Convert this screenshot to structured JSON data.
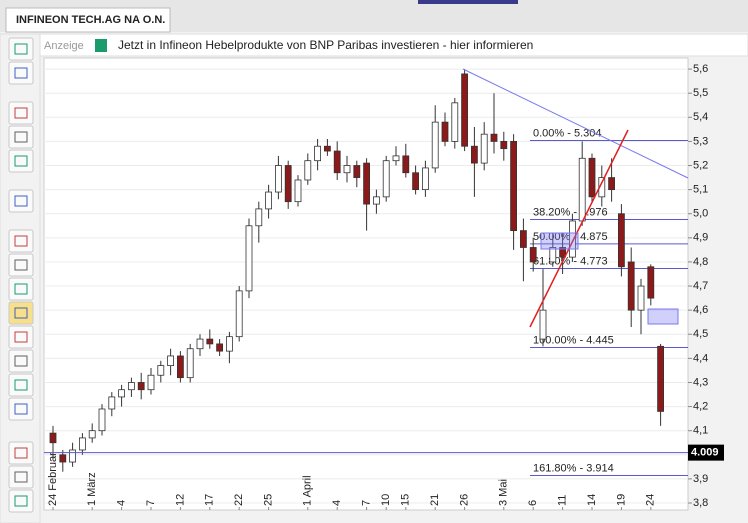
{
  "tab": "INFINEON TECH.AG NA O.N.",
  "ad": {
    "label": "Anzeige",
    "text": "Jetzt in Infineon Hebelprodukte von BNP Paribas investieren - hier informieren"
  },
  "chart_data": {
    "type": "candlestick",
    "categories": [
      "24 Februar",
      null,
      null,
      null,
      "1 März",
      null,
      null,
      "4",
      null,
      null,
      "7",
      null,
      null,
      "12",
      null,
      null,
      "17",
      null,
      null,
      "22",
      null,
      null,
      "25",
      null,
      null,
      null,
      "1 April",
      null,
      null,
      "4",
      null,
      null,
      "7",
      null,
      "10",
      null,
      "15",
      null,
      null,
      "21",
      null,
      null,
      "26",
      null,
      null,
      null,
      "3 Mai",
      null,
      null,
      "6",
      null,
      null,
      "11",
      null,
      null,
      "14",
      null,
      null,
      "19",
      null,
      null,
      "24",
      null
    ],
    "open": [
      4.09,
      4.0,
      3.97,
      4.02,
      4.07,
      4.1,
      4.19,
      4.24,
      4.27,
      4.3,
      4.27,
      4.33,
      4.37,
      4.41,
      4.32,
      4.44,
      4.48,
      4.46,
      4.43,
      4.49,
      4.68,
      4.95,
      5.02,
      5.09,
      5.2,
      5.05,
      5.14,
      5.22,
      5.28,
      5.26,
      5.17,
      5.2,
      5.21,
      5.04,
      5.07,
      5.22,
      5.24,
      5.17,
      5.1,
      5.19,
      5.38,
      5.3,
      5.58,
      5.28,
      5.21,
      5.33,
      5.3,
      5.3,
      4.93,
      4.86,
      4.48,
      4.8,
      4.86,
      4.82,
      4.97,
      5.23,
      5.07,
      5.15,
      5.0,
      4.8,
      4.6,
      4.78,
      4.45
    ],
    "high": [
      4.12,
      4.02,
      4.05,
      4.09,
      4.13,
      4.21,
      4.26,
      4.29,
      4.32,
      4.34,
      4.36,
      4.39,
      4.44,
      4.43,
      4.46,
      4.5,
      4.52,
      4.48,
      4.51,
      4.7,
      4.98,
      5.05,
      5.12,
      5.24,
      5.22,
      5.16,
      5.25,
      5.31,
      5.31,
      5.3,
      5.24,
      5.22,
      5.23,
      5.1,
      5.24,
      5.28,
      5.29,
      5.2,
      5.22,
      5.45,
      5.42,
      5.48,
      5.6,
      5.36,
      5.38,
      5.5,
      5.34,
      5.33,
      4.98,
      4.9,
      4.77,
      4.92,
      4.92,
      5.0,
      5.3,
      5.25,
      5.2,
      5.23,
      5.04,
      4.86,
      4.73,
      4.79,
      4.46
    ],
    "low": [
      3.98,
      3.93,
      3.95,
      4.0,
      4.05,
      4.08,
      4.16,
      4.2,
      4.24,
      4.23,
      4.25,
      4.3,
      4.33,
      4.3,
      4.3,
      4.41,
      4.44,
      4.41,
      4.38,
      4.47,
      4.65,
      4.88,
      4.98,
      5.06,
      5.02,
      5.03,
      5.12,
      5.18,
      5.24,
      5.14,
      5.13,
      5.11,
      4.93,
      5.0,
      5.05,
      5.2,
      5.15,
      5.08,
      5.07,
      5.17,
      5.28,
      5.27,
      5.26,
      5.07,
      5.18,
      5.25,
      5.22,
      4.85,
      4.72,
      4.76,
      4.45,
      4.78,
      4.75,
      4.8,
      4.95,
      5.05,
      5.03,
      5.05,
      4.74,
      4.53,
      4.5,
      4.62,
      4.12
    ],
    "close": [
      4.05,
      3.97,
      4.02,
      4.07,
      4.1,
      4.19,
      4.24,
      4.27,
      4.3,
      4.27,
      4.33,
      4.37,
      4.41,
      4.32,
      4.44,
      4.48,
      4.46,
      4.43,
      4.49,
      4.68,
      4.95,
      5.02,
      5.09,
      5.2,
      5.05,
      5.14,
      5.22,
      5.28,
      5.26,
      5.17,
      5.2,
      5.15,
      5.04,
      5.07,
      5.22,
      5.24,
      5.17,
      5.1,
      5.19,
      5.38,
      5.3,
      5.46,
      5.28,
      5.21,
      5.33,
      5.3,
      5.27,
      4.93,
      4.86,
      4.8,
      4.6,
      4.86,
      4.82,
      4.97,
      5.23,
      5.07,
      5.15,
      5.1,
      4.78,
      4.6,
      4.7,
      4.65,
      4.18
    ],
    "up_color": "#ffffff",
    "down_color": "#8b1a1a",
    "ylim": [
      3.771,
      5.646
    ],
    "yticks": [
      {
        "value": 3.8,
        "label": "3,8"
      },
      {
        "value": 3.9,
        "label": "3,9"
      },
      {
        "value": 4.0,
        "label": "4,0"
      },
      {
        "value": 4.1,
        "label": "4,1"
      },
      {
        "value": 4.2,
        "label": "4,2"
      },
      {
        "value": 4.3,
        "label": "4,3"
      },
      {
        "value": 4.4,
        "label": "4,4"
      },
      {
        "value": 4.5,
        "label": "4,5"
      },
      {
        "value": 4.6,
        "label": "4,6"
      },
      {
        "value": 4.7,
        "label": "4,7"
      },
      {
        "value": 4.8,
        "label": "4,8"
      },
      {
        "value": 4.9,
        "label": "4,9"
      },
      {
        "value": 5.0,
        "label": "5,0"
      },
      {
        "value": 5.1,
        "label": "5,1"
      },
      {
        "value": 5.2,
        "label": "5,2"
      },
      {
        "value": 5.3,
        "label": "5,3"
      },
      {
        "value": 5.4,
        "label": "5,4"
      },
      {
        "value": 5.5,
        "label": "5,5"
      },
      {
        "value": 5.6,
        "label": "5,6"
      }
    ],
    "grid": true,
    "last_price": 4.009,
    "fibonacci": [
      {
        "value": 5.304,
        "label": "0.00% - 5.304"
      },
      {
        "value": 4.976,
        "label": "38.20% - 4.976"
      },
      {
        "value": 4.875,
        "label": "50.00% - 4.875"
      },
      {
        "value": 4.773,
        "label": "61.80% - 4.773"
      },
      {
        "value": 4.445,
        "label": "100.00% - 4.445"
      },
      {
        "value": 3.914,
        "label": "161.80% - 3.914"
      }
    ]
  }
}
